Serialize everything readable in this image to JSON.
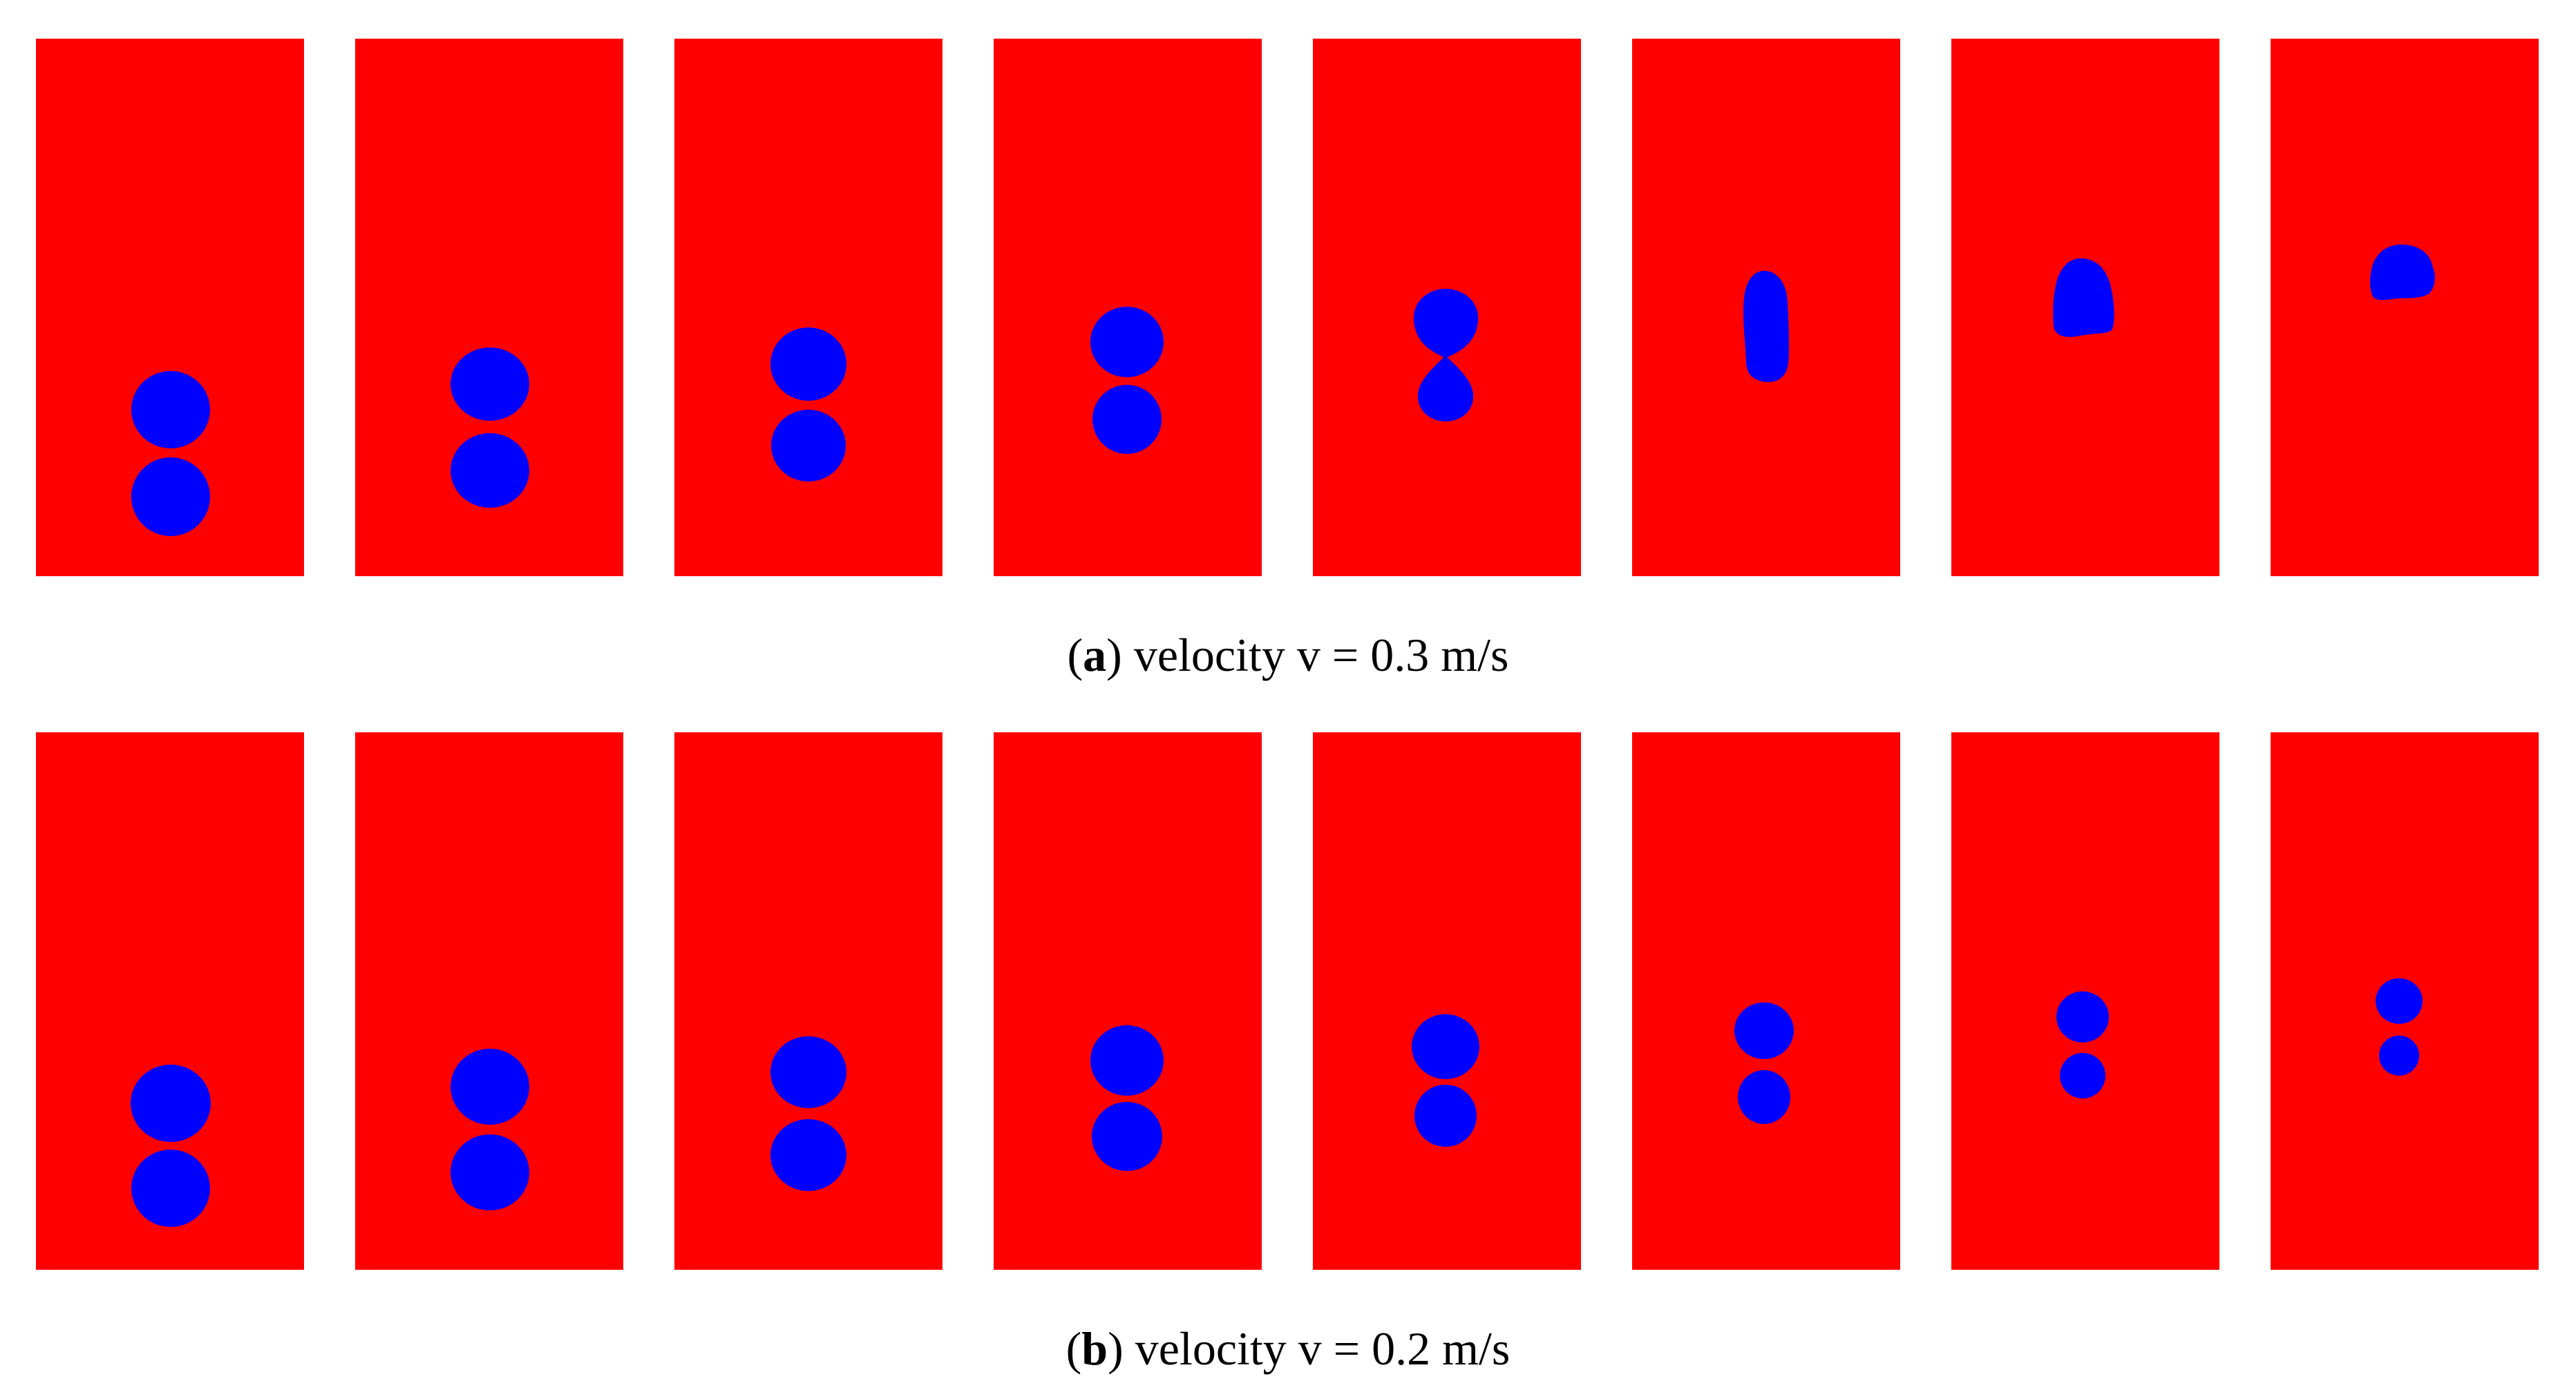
{
  "colors": {
    "background_fluid": "#ff0000",
    "bubble": "#0000ff",
    "page": "#ffffff",
    "caption_text": "#000000"
  },
  "captions": {
    "a": {
      "letter": "a",
      "text": " velocity v = 0.3 m/s"
    },
    "b": {
      "letter": "b",
      "text": " velocity v = 0.2 m/s"
    }
  },
  "rows": [
    {
      "id": "a",
      "frames": 8,
      "state": [
        "two-bubbles",
        "two-bubbles",
        "two-bubbles",
        "two-bubbles",
        "necking",
        "merged",
        "merged",
        "merged"
      ]
    },
    {
      "id": "b",
      "frames": 8,
      "state": [
        "two-bubbles",
        "two-bubbles",
        "two-bubbles",
        "two-bubbles",
        "two-bubbles",
        "two-bubbles",
        "two-bubbles",
        "two-bubbles"
      ]
    }
  ]
}
